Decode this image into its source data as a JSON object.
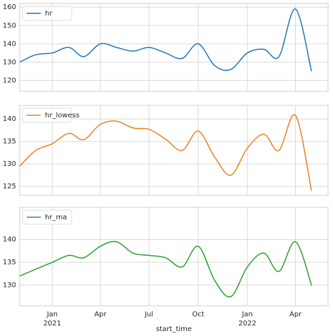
{
  "chart_data": [
    {
      "type": "line",
      "x": [
        "2020-11",
        "2020-12",
        "2021-01",
        "2021-02",
        "2021-03",
        "2021-04",
        "2021-05",
        "2021-06",
        "2021-07",
        "2021-08",
        "2021-09",
        "2021-10",
        "2021-11",
        "2021-12",
        "2022-01",
        "2022-02",
        "2022-03",
        "2022-04",
        "2022-05"
      ],
      "series": [
        {
          "name": "hr",
          "color": "#1f77b4",
          "values": [
            130,
            134,
            135,
            138,
            133,
            140,
            138,
            136,
            138,
            135,
            132,
            140,
            128,
            126,
            135,
            137,
            133,
            159,
            125
          ]
        }
      ],
      "xlim": [
        "2020-11",
        "2022-06"
      ],
      "xticks": [
        "2021-01",
        "2021-04",
        "2021-07",
        "2021-10",
        "2022-01",
        "2022-04"
      ],
      "ylim": [
        114,
        162
      ],
      "yticks": [
        120,
        130,
        140,
        150,
        160
      ],
      "grid": true,
      "legend": "upper left"
    },
    {
      "type": "line",
      "x": [
        "2020-11",
        "2020-12",
        "2021-01",
        "2021-02",
        "2021-03",
        "2021-04",
        "2021-05",
        "2021-06",
        "2021-07",
        "2021-08",
        "2021-09",
        "2021-10",
        "2021-11",
        "2021-12",
        "2022-01",
        "2022-02",
        "2022-03",
        "2022-04",
        "2022-05"
      ],
      "series": [
        {
          "name": "hr_lowess",
          "color": "#e8821e",
          "values": [
            129.5,
            133,
            134.5,
            136.8,
            135.4,
            138.8,
            139.5,
            138,
            137.7,
            135.5,
            133,
            137.3,
            131.5,
            127.5,
            133.5,
            136.6,
            133,
            140.8,
            124
          ]
        }
      ],
      "xlim": [
        "2020-11",
        "2022-06"
      ],
      "xticks": [
        "2021-01",
        "2021-04",
        "2021-07",
        "2021-10",
        "2022-01",
        "2022-04"
      ],
      "ylim": [
        123,
        143
      ],
      "yticks": [
        125,
        130,
        135,
        140
      ],
      "grid": true,
      "legend": "upper left"
    },
    {
      "type": "line",
      "x": [
        "2020-11",
        "2020-12",
        "2021-01",
        "2021-02",
        "2021-03",
        "2021-04",
        "2021-05",
        "2021-06",
        "2021-07",
        "2021-08",
        "2021-09",
        "2021-10",
        "2021-11",
        "2021-12",
        "2022-01",
        "2022-02",
        "2022-03",
        "2022-04",
        "2022-05"
      ],
      "series": [
        {
          "name": "hr_ma",
          "color": "#2ca02c",
          "values": [
            132,
            133.5,
            135,
            136.5,
            136,
            138.5,
            139.5,
            137,
            136.5,
            136,
            134,
            138.5,
            131,
            127.5,
            134,
            137,
            133,
            139.5,
            130
          ]
        }
      ],
      "xlim": [
        "2020-11",
        "2022-06"
      ],
      "xticks": [
        {
          "value": "2021-01",
          "label": "Jan\n2021"
        },
        {
          "value": "2021-04",
          "label": "Apr"
        },
        {
          "value": "2021-07",
          "label": "Jul"
        },
        {
          "value": "2021-10",
          "label": "Oct"
        },
        {
          "value": "2022-01",
          "label": "Jan\n2022"
        },
        {
          "value": "2022-04",
          "label": "Apr"
        }
      ],
      "xlabel": "start_time",
      "ylim": [
        125.5,
        147
      ],
      "yticks": [
        130,
        135,
        140
      ],
      "grid": true,
      "legend": "upper left"
    }
  ]
}
